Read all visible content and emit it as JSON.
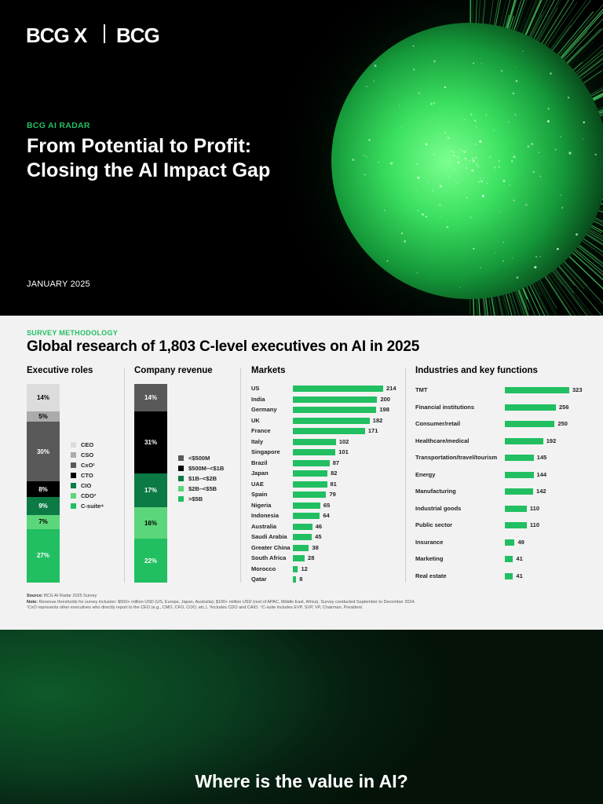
{
  "hero": {
    "logo_primary": "BCG X",
    "logo_secondary": "BCG",
    "eyebrow": "BCG AI RADAR",
    "title_line1": "From Potential to Profit:",
    "title_line2": "Closing the AI Impact Gap",
    "date": "JANUARY 2025",
    "colors": {
      "accent": "#21BF61",
      "background": "#000000"
    }
  },
  "survey": {
    "eyebrow": "SURVEY METHODOLOGY",
    "title": "Global research of 1,803 C-level executives on AI in 2025",
    "executive_roles": {
      "title": "Executive roles",
      "segments": [
        {
          "label": "C-suite⁴",
          "value": 27,
          "display": "27%",
          "color": "#21BF61",
          "text_color": "#ffffff"
        },
        {
          "label": "CDO³",
          "value": 7,
          "display": "7%",
          "color": "#5CD67A",
          "text_color": "#000000"
        },
        {
          "label": "CIO",
          "value": 9,
          "display": "9%",
          "color": "#0B7A45",
          "text_color": "#ffffff"
        },
        {
          "label": "CTO",
          "value": 8,
          "display": "8%",
          "color": "#000000",
          "text_color": "#ffffff"
        },
        {
          "label": "CxO¹",
          "value": 30,
          "display": "30%",
          "color": "#595959",
          "text_color": "#ffffff"
        },
        {
          "label": "CSO",
          "value": 5,
          "display": "5%",
          "color": "#ABABAB",
          "text_color": "#000000"
        },
        {
          "label": "CEO",
          "value": 14,
          "display": "14%",
          "color": "#DCDCDC",
          "text_color": "#000000"
        }
      ],
      "legend": [
        "CEO",
        "CSO",
        "CxO¹",
        "CTO",
        "CIO",
        "CDO³",
        "C-suite⁴"
      ],
      "legend_colors": [
        "#DCDCDC",
        "#ABABAB",
        "#595959",
        "#000000",
        "#0B7A45",
        "#5CD67A",
        "#21BF61"
      ]
    },
    "company_revenue": {
      "title": "Company revenue",
      "segments": [
        {
          "label": ">$5B",
          "value": 22,
          "display": "22%",
          "color": "#21BF61",
          "text_color": "#ffffff"
        },
        {
          "label": "$2B–<$5B",
          "value": 16,
          "display": "16%",
          "color": "#5CD67A",
          "text_color": "#000000"
        },
        {
          "label": "$1B–<$2B",
          "value": 17,
          "display": "17%",
          "color": "#0B7A45",
          "text_color": "#ffffff"
        },
        {
          "label": "$500M–<$1B",
          "value": 31,
          "display": "31%",
          "color": "#000000",
          "text_color": "#ffffff"
        },
        {
          "label": "<$500M",
          "value": 14,
          "display": "14%",
          "color": "#595959",
          "text_color": "#ffffff"
        }
      ],
      "legend": [
        "<$500M",
        "$500M–<$1B",
        "$1B–<$2B",
        "$2B–<$5B",
        ">$5B"
      ],
      "legend_colors": [
        "#595959",
        "#000000",
        "#0B7A45",
        "#5CD67A",
        "#21BF61"
      ]
    },
    "markets": {
      "title": "Markets",
      "items": [
        {
          "label": "US",
          "value": 214
        },
        {
          "label": "India",
          "value": 200
        },
        {
          "label": "Germany",
          "value": 198
        },
        {
          "label": "UK",
          "value": 182
        },
        {
          "label": "France",
          "value": 171
        },
        {
          "label": "Italy",
          "value": 102
        },
        {
          "label": "Singapore",
          "value": 101
        },
        {
          "label": "Brazil",
          "value": 87
        },
        {
          "label": "Japan",
          "value": 82
        },
        {
          "label": "UAE",
          "value": 81
        },
        {
          "label": "Spain",
          "value": 79
        },
        {
          "label": "Nigeria",
          "value": 65
        },
        {
          "label": "Indonesia",
          "value": 64
        },
        {
          "label": "Australia",
          "value": 46
        },
        {
          "label": "Saudi Arabia",
          "value": 45
        },
        {
          "label": "Greater China",
          "value": 38
        },
        {
          "label": "South Africa",
          "value": 28
        },
        {
          "label": "Morocco",
          "value": 12
        },
        {
          "label": "Qatar",
          "value": 8
        }
      ]
    },
    "industries": {
      "title": "Industries and key functions",
      "items": [
        {
          "label": "TMT",
          "value": 323
        },
        {
          "label": "Financial institutions",
          "value": 256
        },
        {
          "label": "Consumer/retail",
          "value": 250
        },
        {
          "label": "Healthcare/medical",
          "value": 192
        },
        {
          "label": "Transportation/travel/tourism",
          "value": 145
        },
        {
          "label": "Energy",
          "value": 144
        },
        {
          "label": "Manufacturing",
          "value": 142
        },
        {
          "label": "Industrial goods",
          "value": 110
        },
        {
          "label": "Public sector",
          "value": 110
        },
        {
          "label": "Insurance",
          "value": 49
        },
        {
          "label": "Marketing",
          "value": 41
        },
        {
          "label": "Real estate",
          "value": 41
        }
      ]
    },
    "notes": {
      "source_label": "Source:",
      "source_text": "BCG AI Radar 2025 Survey",
      "note_label": "Note:",
      "note_text": "Revenue thresholds for survey inclusion: $500+ million USD (US, Europe, Japan, Australia); $100+ million USD (rest of APAC, Middle East, Africa). Survey conducted September to December 2024.",
      "footnote": "¹CxO represents other executives who directly report to the CEO (e.g., CMO, CFO, COO, etc.). ³Includes CDO and CAIO. ⁴C-suite includes EVP, SVP, VP, Chairman, President."
    }
  },
  "bottom": {
    "title": "Where is the value in AI?"
  }
}
